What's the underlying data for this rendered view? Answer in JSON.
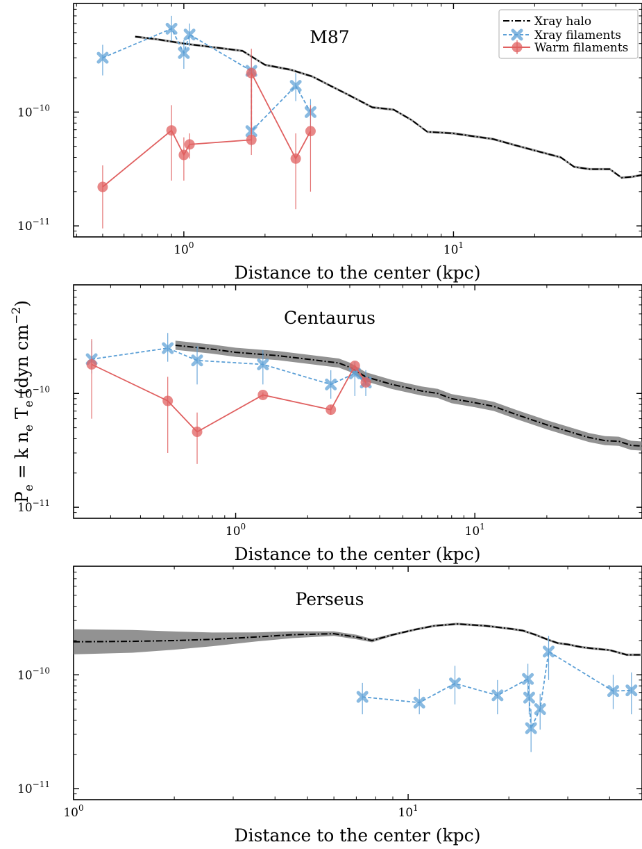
{
  "figure": {
    "ylabel": {
      "main": "P",
      "sub1": "e",
      "mid1": " = k n",
      "sub2": "e",
      "mid2": " T",
      "sub3": "e",
      "unit_open": " (dyn cm",
      "unit_sup": "−2",
      "unit_close": ")"
    }
  },
  "legend": {
    "halo": "Xray halo",
    "xfil": "Xray filaments",
    "warm": "Warm filaments"
  },
  "colors": {
    "halo": "#000000",
    "band": "#7f7f7f",
    "xfil": "#5b9fd6",
    "warm": "#e06060"
  },
  "chart_data": [
    {
      "type": "line",
      "title": "M87",
      "xlabel": "Distance to the center (kpc)",
      "xscale": "log",
      "yscale": "log",
      "xlim": [
        0.39,
        50
      ],
      "ylim": [
        8e-12,
        9e-10
      ],
      "xticks": [
        {
          "v": 1,
          "label": "10",
          "sup": "0"
        },
        {
          "v": 10,
          "label": "10",
          "sup": "1"
        }
      ],
      "yticks": [
        {
          "v": 1e-11,
          "label": "10",
          "sup": "−11"
        },
        {
          "v": 1e-10,
          "label": "10",
          "sup": "−10"
        }
      ],
      "legend": "top-right",
      "series": [
        {
          "name": "Xray halo",
          "kind": "halo",
          "band": 0.01,
          "x": [
            0.66,
            0.8,
            1.0,
            1.3,
            1.65,
            2.0,
            2.5,
            3.0,
            3.5,
            4.0,
            5.0,
            6.0,
            7.0,
            8.0,
            9.0,
            10,
            12,
            14,
            17,
            20,
            25,
            28,
            32,
            38,
            42,
            46,
            50
          ],
          "y": [
            4.6e-10,
            4.35e-10,
            4e-10,
            3.7e-10,
            3.45e-10,
            2.6e-10,
            2.35e-10,
            2.05e-10,
            1.7e-10,
            1.45e-10,
            1.1e-10,
            1.05e-10,
            8.5e-11,
            6.7e-11,
            6.6e-11,
            6.5e-11,
            6.1e-11,
            5.8e-11,
            5.1e-11,
            4.6e-11,
            4e-11,
            3.3e-11,
            3.15e-11,
            3.15e-11,
            2.65e-11,
            2.7e-11,
            2.8e-11
          ]
        },
        {
          "name": "Xray filaments",
          "kind": "xfil",
          "x": [
            0.5,
            0.9,
            1.0,
            1.05,
            1.78,
            1.78,
            2.6,
            2.95
          ],
          "y": [
            3e-10,
            5.4e-10,
            3.3e-10,
            4.8e-10,
            2.3e-10,
            6.8e-11,
            1.7e-10,
            1e-10
          ],
          "ylo": [
            2.1e-10,
            4.2e-10,
            2.4e-10,
            3.8e-10,
            1.7e-10,
            5e-11,
            1.25e-10,
            7.5e-11
          ],
          "yhi": [
            3.9e-10,
            7e-10,
            4.3e-10,
            6e-10,
            3e-10,
            2.2e-10,
            2.2e-10,
            1.3e-10
          ]
        },
        {
          "name": "Warm filaments",
          "kind": "warm",
          "x": [
            0.5,
            0.9,
            1.0,
            1.05,
            1.78,
            1.78,
            2.6,
            2.95
          ],
          "y": [
            2.2e-11,
            6.9e-11,
            4.2e-11,
            5.2e-11,
            5.7e-11,
            2.2e-10,
            3.9e-11,
            6.8e-11
          ],
          "ylo": [
            9.5e-12,
            2.5e-11,
            2.5e-11,
            3.9e-11,
            4.2e-11,
            6e-11,
            1.4e-11,
            2e-11
          ],
          "yhi": [
            3.4e-11,
            1.15e-10,
            6e-11,
            6.5e-11,
            7.2e-11,
            3.6e-10,
            6.5e-11,
            1.15e-10
          ]
        }
      ]
    },
    {
      "type": "line",
      "title": "Centaurus",
      "xlabel": "Distance to the center (kpc)",
      "xscale": "log",
      "yscale": "log",
      "xlim": [
        0.21,
        50
      ],
      "ylim": [
        8e-12,
        9e-10
      ],
      "xticks": [
        {
          "v": 1,
          "label": "10",
          "sup": "0"
        },
        {
          "v": 10,
          "label": "10",
          "sup": "1"
        }
      ],
      "yticks": [
        {
          "v": 1e-11,
          "label": "10",
          "sup": "−11"
        },
        {
          "v": 1e-10,
          "label": "10",
          "sup": "−10"
        }
      ],
      "series": [
        {
          "name": "Xray halo",
          "kind": "halo",
          "band": 0.04,
          "x": [
            0.56,
            0.8,
            1.0,
            1.5,
            2.0,
            2.7,
            3.0,
            3.5,
            4.5,
            6.0,
            7.0,
            8.0,
            10,
            12,
            15,
            20,
            25,
            30,
            35,
            40,
            45,
            50
          ],
          "y": [
            2.65e-10,
            2.45e-10,
            2.3e-10,
            2.15e-10,
            2e-10,
            1.85e-10,
            1.7e-10,
            1.4e-10,
            1.2e-10,
            1.05e-10,
            1e-10,
            9e-11,
            8.3e-11,
            7.7e-11,
            6.5e-11,
            5.3e-11,
            4.6e-11,
            4.1e-11,
            3.85e-11,
            3.8e-11,
            3.5e-11,
            3.45e-11
          ]
        },
        {
          "name": "Xray filaments",
          "kind": "xfil",
          "x": [
            0.25,
            0.52,
            0.69,
            1.3,
            2.5,
            3.15,
            3.5
          ],
          "y": [
            2e-10,
            2.5e-10,
            1.95e-10,
            1.8e-10,
            1.2e-10,
            1.5e-10,
            1.25e-10
          ],
          "ylo": [
            1.5e-10,
            1.9e-10,
            1.2e-10,
            1.2e-10,
            9e-11,
            9.5e-11,
            9.5e-11
          ],
          "yhi": [
            2.9e-10,
            3.4e-10,
            2.6e-10,
            2.4e-10,
            1.6e-10,
            1.9e-10,
            1.6e-10
          ]
        },
        {
          "name": "Warm filaments",
          "kind": "warm",
          "x": [
            0.25,
            0.52,
            0.69,
            1.3,
            2.5,
            3.15,
            3.5
          ],
          "y": [
            1.8e-10,
            8.6e-11,
            4.6e-11,
            9.7e-11,
            7.2e-11,
            1.75e-10,
            1.25e-10
          ],
          "ylo": [
            6e-11,
            3e-11,
            2.4e-11,
            9.2e-11,
            6.5e-11,
            1.7e-10,
            1.2e-10
          ],
          "yhi": [
            3e-10,
            1.4e-10,
            6.8e-11,
            1.02e-10,
            7.9e-11,
            1.8e-10,
            1.3e-10
          ]
        }
      ]
    },
    {
      "type": "line",
      "title": "Perseus",
      "xlabel": "Distance to the center (kpc)",
      "xscale": "log",
      "yscale": "log",
      "xlim": [
        1.0,
        50
      ],
      "ylim": [
        8e-12,
        9e-10
      ],
      "xticks": [
        {
          "v": 1,
          "label": "10",
          "sup": "0"
        },
        {
          "v": 10,
          "label": "10",
          "sup": "1"
        }
      ],
      "yticks": [
        {
          "v": 1e-11,
          "label": "10",
          "sup": "−11"
        },
        {
          "v": 1e-10,
          "label": "10",
          "sup": "−10"
        }
      ],
      "series": [
        {
          "name": "Xray halo",
          "kind": "halo",
          "x": [
            1.0,
            1.5,
            2.0,
            2.6,
            3.5,
            4.5,
            6.0,
            7.0,
            7.8,
            9.0,
            10.5,
            12,
            14,
            17,
            20,
            22,
            24,
            26,
            28,
            30,
            33,
            36,
            40,
            45,
            50
          ],
          "y": [
            1.95e-10,
            1.97e-10,
            2e-10,
            2.05e-10,
            2.15e-10,
            2.25e-10,
            2.3e-10,
            2.15e-10,
            2e-10,
            2.25e-10,
            2.5e-10,
            2.7e-10,
            2.8e-10,
            2.7e-10,
            2.55e-10,
            2.45e-10,
            2.25e-10,
            2.05e-10,
            1.9e-10,
            1.85e-10,
            1.75e-10,
            1.7e-10,
            1.65e-10,
            1.5e-10,
            1.5e-10
          ],
          "bandw": [
            0.11,
            0.1,
            0.08,
            0.06,
            0.04,
            0.03,
            0.02,
            0.02,
            0.015,
            0.01,
            0.01,
            0.01,
            0.01,
            0.01,
            0.01,
            0.01,
            0.01,
            0.01,
            0.01,
            0.01,
            0.01,
            0.01,
            0.01,
            0.01,
            0.01
          ]
        },
        {
          "name": "Xray filaments",
          "kind": "xfil",
          "x": [
            7.3,
            10.8,
            13.8,
            18.5,
            22.8,
            23.0,
            23.3,
            24.8,
            26.3,
            41.0,
            46.5
          ],
          "y": [
            6.4e-11,
            5.7e-11,
            8.4e-11,
            6.6e-11,
            9.2e-11,
            6.3e-11,
            3.4e-11,
            5e-11,
            1.6e-10,
            7.2e-11,
            7.3e-11
          ],
          "ylo": [
            4.5e-11,
            4.5e-11,
            5.5e-11,
            4.5e-11,
            6.5e-11,
            4.5e-11,
            2.1e-11,
            3.3e-11,
            9e-11,
            5e-11,
            4.5e-11
          ],
          "yhi": [
            8.5e-11,
            7.5e-11,
            1.2e-10,
            9e-11,
            1.25e-10,
            8.5e-11,
            5e-11,
            6.8e-11,
            2.2e-10,
            1e-10,
            1.05e-10
          ]
        }
      ]
    }
  ]
}
